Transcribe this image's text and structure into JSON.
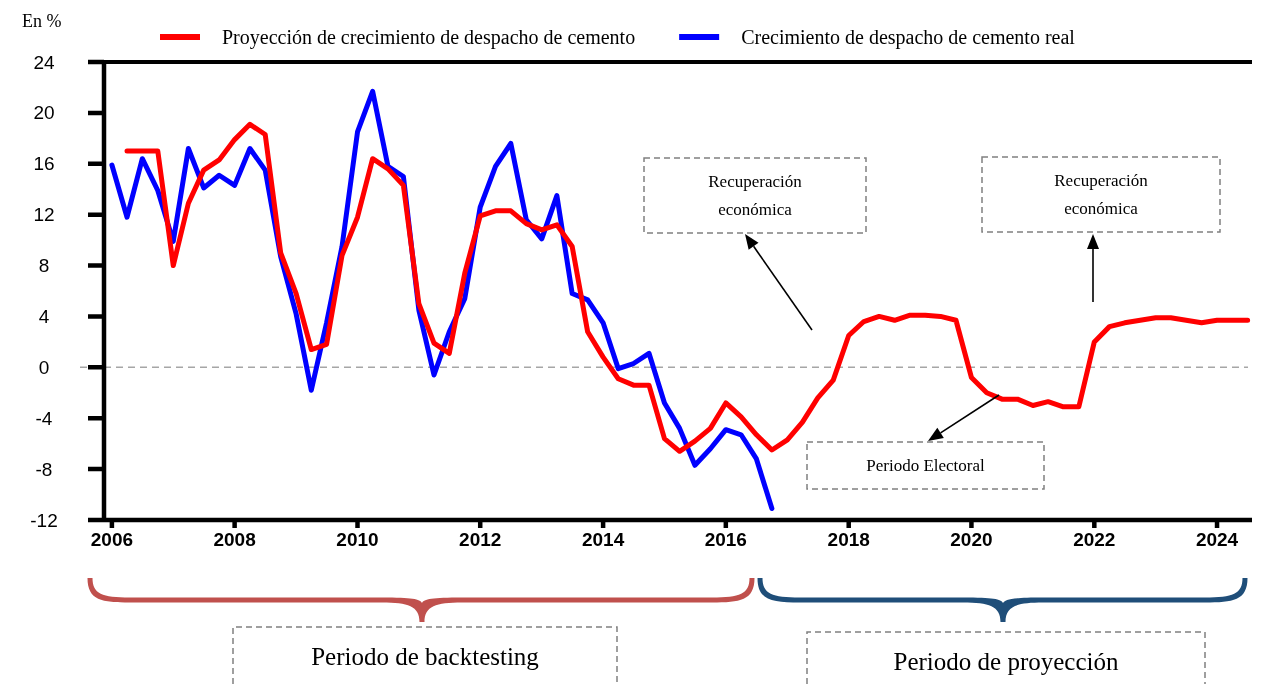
{
  "chart_data": {
    "type": "line",
    "ylabel": "En %",
    "legend": "top",
    "xlim": [
      "2005-11-15",
      "2024-07-27"
    ],
    "xticks": [
      "2006",
      "2008",
      "2010",
      "2012",
      "2014",
      "2016",
      "2018",
      "2020",
      "2022",
      "2024"
    ],
    "ylim": [
      -12,
      24
    ],
    "yticks": [
      -12,
      -8,
      -4,
      0,
      4,
      8,
      12,
      16,
      20,
      24
    ],
    "ref_lines": [
      {
        "axis": "y",
        "value": 0,
        "color": "#a6a6a6",
        "line_style": "dashed"
      }
    ],
    "annotations": [
      "Recuperación económica",
      "Recuperación económica",
      "Periodo Electoral",
      "Periodo de backtesting",
      "Periodo de proyección"
    ],
    "series": [
      {
        "name": "Proyección de crecimiento de despacho de cemento",
        "color": "#ff0000",
        "x": [
          "2006-04",
          "2006-07",
          "2006-10",
          "2007-01",
          "2007-04",
          "2007-07",
          "2007-10",
          "2008-01",
          "2008-04",
          "2008-07",
          "2008-10",
          "2009-01",
          "2009-04",
          "2009-07",
          "2009-10",
          "2010-01",
          "2010-04",
          "2010-07",
          "2010-10",
          "2011-01",
          "2011-04",
          "2011-07",
          "2011-10",
          "2012-01",
          "2012-04",
          "2012-07",
          "2012-10",
          "2013-01",
          "2013-04",
          "2013-07",
          "2013-10",
          "2014-01",
          "2014-04",
          "2014-07",
          "2014-10",
          "2015-01",
          "2015-04",
          "2015-07",
          "2015-10",
          "2016-01",
          "2016-04",
          "2016-07",
          "2016-10",
          "2017-01",
          "2017-04",
          "2017-07",
          "2017-10",
          "2018-01",
          "2018-04",
          "2018-07",
          "2018-10",
          "2019-01",
          "2019-04",
          "2019-07",
          "2019-10",
          "2020-01",
          "2020-04",
          "2020-07",
          "2020-10",
          "2021-01",
          "2021-04",
          "2021-07",
          "2021-10",
          "2022-01",
          "2022-04",
          "2022-07",
          "2022-10",
          "2023-01",
          "2023-04",
          "2023-07",
          "2023-10",
          "2024-01",
          "2024-04",
          "2024-07"
        ],
        "values": [
          17.0,
          17.0,
          17.0,
          8.0,
          12.9,
          15.5,
          16.3,
          17.9,
          19.1,
          18.3,
          9.0,
          5.8,
          1.4,
          1.8,
          8.8,
          11.8,
          16.4,
          15.6,
          14.3,
          5.0,
          1.9,
          1.1,
          7.4,
          11.9,
          12.3,
          12.3,
          11.3,
          10.8,
          11.2,
          9.5,
          2.8,
          0.8,
          -0.9,
          -1.4,
          -1.4,
          -5.6,
          -6.6,
          -5.8,
          -4.8,
          -2.8,
          -3.9,
          -5.3,
          -6.5,
          -5.7,
          -4.3,
          -2.4,
          -1.0,
          2.5,
          3.6,
          4.0,
          3.7,
          4.1,
          4.1,
          4.0,
          3.7,
          -0.8,
          -2.0,
          -2.5,
          -2.5,
          -3.0,
          -2.7,
          -3.1,
          -3.1,
          2.0,
          3.2,
          3.5,
          3.7,
          3.9,
          3.9,
          3.7,
          3.5,
          3.7,
          3.7,
          3.7
        ]
      },
      {
        "name": "Crecimiento de despacho de cemento real",
        "color": "#0000ff",
        "x": [
          "2006-01",
          "2006-04",
          "2006-07",
          "2006-10",
          "2007-01",
          "2007-04",
          "2007-07",
          "2007-10",
          "2008-01",
          "2008-04",
          "2008-07",
          "2008-10",
          "2009-01",
          "2009-04",
          "2009-07",
          "2009-10",
          "2010-01",
          "2010-04",
          "2010-07",
          "2010-10",
          "2011-01",
          "2011-04",
          "2011-07",
          "2011-10",
          "2012-01",
          "2012-04",
          "2012-07",
          "2012-10",
          "2013-01",
          "2013-04",
          "2013-07",
          "2013-10",
          "2014-01",
          "2014-04",
          "2014-07",
          "2014-10",
          "2015-01",
          "2015-04",
          "2015-07",
          "2015-10",
          "2016-01",
          "2016-04",
          "2016-07",
          "2016-10"
        ],
        "values": [
          15.9,
          11.8,
          16.4,
          13.9,
          9.9,
          17.2,
          14.1,
          15.1,
          14.3,
          17.2,
          15.5,
          8.7,
          4.2,
          -1.8,
          3.5,
          9.5,
          18.5,
          21.7,
          15.8,
          15.0,
          4.5,
          -0.6,
          2.8,
          5.4,
          12.6,
          15.8,
          17.6,
          11.6,
          10.1,
          13.5,
          5.8,
          5.3,
          3.5,
          -0.1,
          0.3,
          1.1,
          -2.8,
          -4.8,
          -7.7,
          -6.4,
          -4.9,
          -5.3,
          -7.2,
          -11.1
        ]
      }
    ]
  }
}
